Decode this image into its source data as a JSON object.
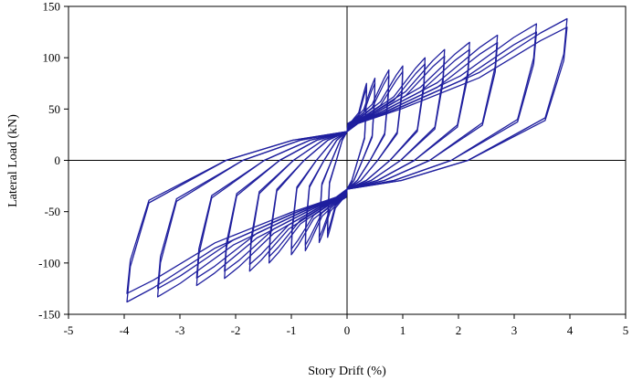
{
  "chart_data": {
    "type": "line",
    "title": "",
    "xlabel": "Story Drift  (%)",
    "ylabel": "Lateral Load  (kN)",
    "xlim": [
      -5,
      5
    ],
    "ylim": [
      -150,
      150
    ],
    "xticks": [
      -5,
      -4,
      -3,
      -2,
      -1,
      0,
      1,
      2,
      3,
      4,
      5
    ],
    "yticks": [
      -150,
      -100,
      -50,
      0,
      50,
      100,
      150
    ],
    "xtick_labels": [
      "-5",
      "-4",
      "-3",
      "-2",
      "-1",
      "0",
      "1",
      "2",
      "3",
      "4",
      "5"
    ],
    "ytick_labels": [
      "-150",
      "-100",
      "-50",
      "0",
      "50",
      "100",
      "150"
    ],
    "grid": false,
    "legend": "none",
    "series_color": "#1f1f9e",
    "cycles": [
      {
        "peak_drift": 0.35,
        "peak_load": 75
      },
      {
        "peak_drift": 0.5,
        "peak_load": 80
      },
      {
        "peak_drift": 0.75,
        "peak_load": 88
      },
      {
        "peak_drift": 1.0,
        "peak_load": 92
      },
      {
        "peak_drift": 1.4,
        "peak_load": 100
      },
      {
        "peak_drift": 1.75,
        "peak_load": 108
      },
      {
        "peak_drift": 2.2,
        "peak_load": 115
      },
      {
        "peak_drift": 2.7,
        "peak_load": 122
      },
      {
        "peak_drift": 3.4,
        "peak_load": 133
      },
      {
        "peak_drift": 3.95,
        "peak_load": 138
      }
    ]
  }
}
